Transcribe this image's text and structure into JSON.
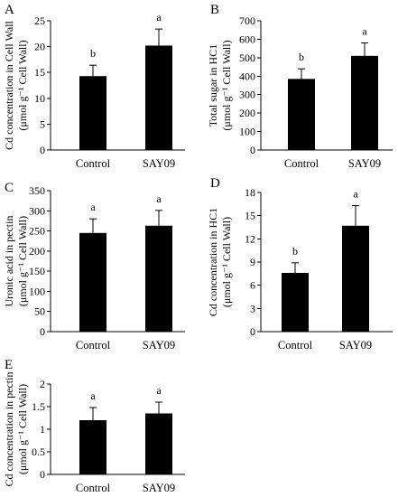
{
  "chart_data": [
    {
      "type": "bar",
      "panel": "A",
      "ylabel": [
        "Cd concentration in Cell Wall",
        "(μmol g⁻¹ Cell Wall)"
      ],
      "ylim": [
        0,
        25
      ],
      "yticks": [
        0,
        5,
        10,
        15,
        20,
        25
      ],
      "ytick_labels": [
        "0",
        "5",
        "10",
        "15",
        "20",
        "25"
      ],
      "categories": [
        "Control",
        "SAY09"
      ],
      "values": [
        14.3,
        20.2
      ],
      "errors": [
        2.1,
        3.2
      ],
      "significance": [
        "b",
        "a"
      ]
    },
    {
      "type": "bar",
      "panel": "B",
      "ylabel": [
        "Total sugar in HC1",
        "(μmol g⁻¹ Cell Wall)"
      ],
      "ylim": [
        0,
        700
      ],
      "yticks": [
        0,
        100,
        200,
        300,
        400,
        500,
        600,
        700
      ],
      "ytick_labels": [
        "0",
        "100",
        "200",
        "300",
        "400",
        "500",
        "600",
        "700"
      ],
      "categories": [
        "Control",
        "SAY09"
      ],
      "values": [
        385,
        510
      ],
      "errors": [
        55,
        70
      ],
      "significance": [
        "b",
        "a"
      ]
    },
    {
      "type": "bar",
      "panel": "C",
      "ylabel": [
        "Uronic acid in pectin",
        "(μmol g⁻¹ Cell Wall)"
      ],
      "ylim": [
        0,
        350
      ],
      "yticks": [
        0,
        50,
        100,
        150,
        200,
        250,
        300,
        350
      ],
      "ytick_labels": [
        "0",
        "50",
        "100",
        "150",
        "200",
        "250",
        "300",
        "350"
      ],
      "categories": [
        "Control",
        "SAY09"
      ],
      "values": [
        245,
        263
      ],
      "errors": [
        35,
        38
      ],
      "significance": [
        "a",
        "a"
      ]
    },
    {
      "type": "bar",
      "panel": "D",
      "ylabel": [
        "Cd concentration in HC1",
        "(μmol g⁻¹ Cell Wall)"
      ],
      "ylim": [
        0,
        18
      ],
      "yticks": [
        0,
        3,
        6,
        9,
        12,
        15,
        18
      ],
      "ytick_labels": [
        "0",
        "3",
        "6",
        "9",
        "12",
        "15",
        "18"
      ],
      "categories": [
        "Control",
        "SAY09"
      ],
      "values": [
        7.6,
        13.7
      ],
      "errors": [
        1.3,
        2.6
      ],
      "significance": [
        "b",
        "a"
      ]
    },
    {
      "type": "bar",
      "panel": "E",
      "ylabel": [
        "Cd concentration in pectin",
        "(μmol g⁻¹ Cell Wall)"
      ],
      "ylim": [
        0,
        2
      ],
      "yticks": [
        0,
        0.5,
        1,
        1.5,
        2
      ],
      "ytick_labels": [
        "0",
        "0.5",
        "1",
        "1.5",
        "2"
      ],
      "categories": [
        "Control",
        "SAY09"
      ],
      "values": [
        1.2,
        1.35
      ],
      "errors": [
        0.28,
        0.25
      ],
      "significance": [
        "a",
        "a"
      ]
    }
  ]
}
